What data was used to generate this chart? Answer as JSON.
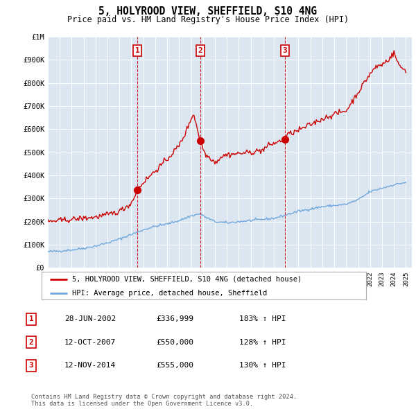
{
  "title": "5, HOLYROOD VIEW, SHEFFIELD, S10 4NG",
  "subtitle": "Price paid vs. HM Land Registry's House Price Index (HPI)",
  "plot_bg_color": "#dce6f1",
  "ylim": [
    0,
    1000000
  ],
  "yticks": [
    0,
    100000,
    200000,
    300000,
    400000,
    500000,
    600000,
    700000,
    800000,
    900000,
    1000000
  ],
  "ytick_labels": [
    "£0",
    "£100K",
    "£200K",
    "£300K",
    "£400K",
    "£500K",
    "£600K",
    "£700K",
    "£800K",
    "£900K",
    "£1M"
  ],
  "hpi_color": "#6fa8dc",
  "sale_color": "#cc0000",
  "marker_color": "#cc0000",
  "vline_color": "#cc0000",
  "xlim_start": 1995,
  "xlim_end": 2025.5,
  "transactions": [
    {
      "date_num": 2002.49,
      "price": 336999,
      "label": "1"
    },
    {
      "date_num": 2007.78,
      "price": 550000,
      "label": "2"
    },
    {
      "date_num": 2014.87,
      "price": 555000,
      "label": "3"
    }
  ],
  "legend_label_sale": "5, HOLYROOD VIEW, SHEFFIELD, S10 4NG (detached house)",
  "legend_label_hpi": "HPI: Average price, detached house, Sheffield",
  "table_rows": [
    {
      "num": "1",
      "date": "28-JUN-2002",
      "price": "£336,999",
      "pct": "183% ↑ HPI"
    },
    {
      "num": "2",
      "date": "12-OCT-2007",
      "price": "£550,000",
      "pct": "128% ↑ HPI"
    },
    {
      "num": "3",
      "date": "12-NOV-2014",
      "price": "£555,000",
      "pct": "130% ↑ HPI"
    }
  ],
  "footnote": "Contains HM Land Registry data © Crown copyright and database right 2024.\nThis data is licensed under the Open Government Licence v3.0.",
  "hpi_anchors_x": [
    1995,
    1996,
    1997,
    1998,
    1999,
    2000,
    2001,
    2002,
    2003,
    2004,
    2005,
    2006,
    2007,
    2007.8,
    2008,
    2009,
    2010,
    2011,
    2012,
    2013,
    2014,
    2015,
    2016,
    2017,
    2018,
    2019,
    2020,
    2021,
    2022,
    2023,
    2024,
    2025
  ],
  "hpi_anchors_y": [
    70000,
    73000,
    78000,
    85000,
    95000,
    108000,
    125000,
    145000,
    165000,
    180000,
    190000,
    205000,
    225000,
    235000,
    225000,
    200000,
    195000,
    200000,
    205000,
    210000,
    215000,
    230000,
    245000,
    255000,
    265000,
    270000,
    275000,
    295000,
    330000,
    345000,
    360000,
    370000
  ],
  "sale_anchors_x": [
    1995,
    1996,
    1997,
    1998,
    1999,
    2000,
    2001,
    2002,
    2002.49,
    2003,
    2004,
    2005,
    2006,
    2006.5,
    2007.2,
    2007.78,
    2008.2,
    2008.8,
    2009,
    2009.5,
    2010,
    2011,
    2012,
    2013,
    2013.5,
    2014,
    2014.87,
    2015,
    2016,
    2017,
    2018,
    2019,
    2020,
    2020.5,
    2021,
    2021.5,
    2022,
    2022.5,
    2023,
    2023.5,
    2024,
    2024.5,
    2025
  ],
  "sale_anchors_y": [
    200000,
    205000,
    210000,
    215000,
    220000,
    230000,
    245000,
    280000,
    336999,
    370000,
    420000,
    470000,
    530000,
    580000,
    670000,
    550000,
    490000,
    470000,
    455000,
    480000,
    490000,
    495000,
    500000,
    510000,
    530000,
    540000,
    555000,
    575000,
    595000,
    620000,
    645000,
    665000,
    680000,
    720000,
    760000,
    800000,
    840000,
    870000,
    880000,
    900000,
    930000,
    870000,
    855000
  ]
}
